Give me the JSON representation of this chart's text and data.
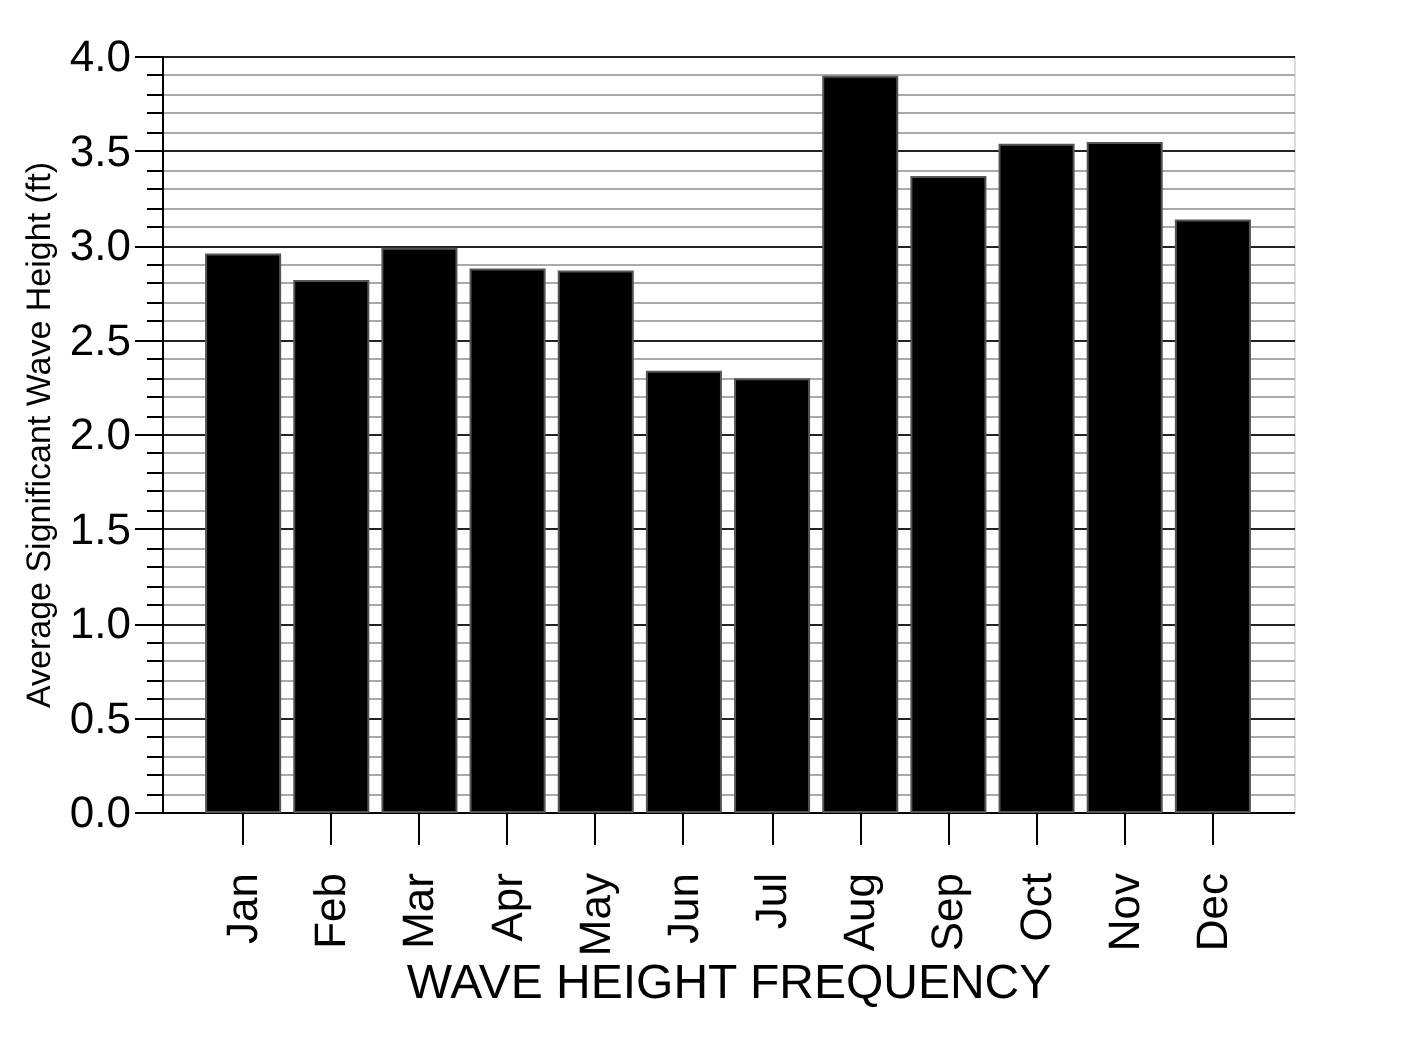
{
  "chart_data": {
    "type": "bar",
    "xlabel": "WAVE HEIGHT FREQUENCY",
    "ylabel": "Average Significant Wave Height (ft)",
    "categories": [
      "Jan",
      "Feb",
      "Mar",
      "Apr",
      "May",
      "Jun",
      "Jul",
      "Aug",
      "Sep",
      "Oct",
      "Nov",
      "Dec"
    ],
    "values": [
      2.95,
      2.81,
      2.98,
      2.87,
      2.86,
      2.33,
      2.29,
      3.89,
      3.36,
      3.53,
      3.54,
      3.13
    ],
    "color": "#000000",
    "ylim": [
      0,
      4
    ],
    "yticks": [
      {
        "value": 0,
        "label": "0.0"
      },
      {
        "value": 0.1,
        "label": null
      },
      {
        "value": 0.2,
        "label": null
      },
      {
        "value": 0.3,
        "label": null
      },
      {
        "value": 0.4,
        "label": null
      },
      {
        "value": 0.5,
        "label": "0.5"
      },
      {
        "value": 0.6,
        "label": null
      },
      {
        "value": 0.7,
        "label": null
      },
      {
        "value": 0.8,
        "label": null
      },
      {
        "value": 0.9,
        "label": null
      },
      {
        "value": 1,
        "label": "1.0"
      },
      {
        "value": 1.1,
        "label": null
      },
      {
        "value": 1.2,
        "label": null
      },
      {
        "value": 1.3,
        "label": null
      },
      {
        "value": 1.4,
        "label": null
      },
      {
        "value": 1.5,
        "label": "1.5"
      },
      {
        "value": 1.6,
        "label": null
      },
      {
        "value": 1.7,
        "label": null
      },
      {
        "value": 1.8,
        "label": null
      },
      {
        "value": 1.9,
        "label": null
      },
      {
        "value": 2,
        "label": "2.0"
      },
      {
        "value": 2.1,
        "label": null
      },
      {
        "value": 2.2,
        "label": null
      },
      {
        "value": 2.3,
        "label": null
      },
      {
        "value": 2.4,
        "label": null
      },
      {
        "value": 2.5,
        "label": "2.5"
      },
      {
        "value": 2.6,
        "label": null
      },
      {
        "value": 2.7,
        "label": null
      },
      {
        "value": 2.8,
        "label": null
      },
      {
        "value": 2.9,
        "label": null
      },
      {
        "value": 3,
        "label": "3.0"
      },
      {
        "value": 3.1,
        "label": null
      },
      {
        "value": 3.2,
        "label": null
      },
      {
        "value": 3.3,
        "label": null
      },
      {
        "value": 3.4,
        "label": null
      },
      {
        "value": 3.5,
        "label": "3.5"
      },
      {
        "value": 3.6,
        "label": null
      },
      {
        "value": 3.7,
        "label": null
      },
      {
        "value": 3.8,
        "label": null
      },
      {
        "value": 3.9,
        "label": null
      },
      {
        "value": 4,
        "label": "4.0"
      }
    ],
    "grid": "y"
  }
}
